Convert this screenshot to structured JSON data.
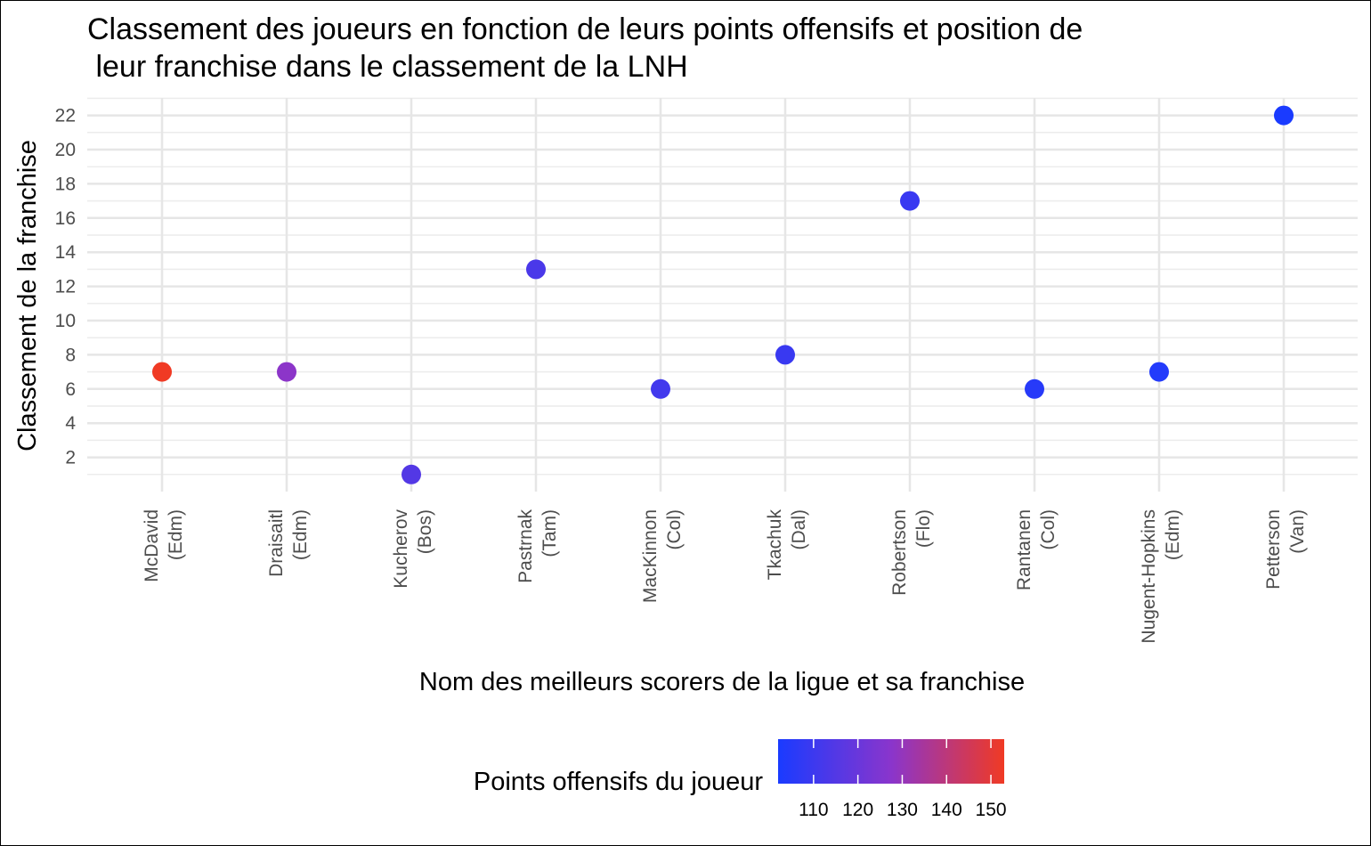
{
  "chart_data": {
    "type": "scatter",
    "title_line1": "Classement des joueurs en fonction de leurs points offensifs et position de",
    "title_line2": " leur franchise dans le classement de la LNH",
    "xlabel": "Nom des meilleurs scorers de la ligue et sa franchise",
    "ylabel": "Classement de la franchise",
    "ylim": [
      0,
      23
    ],
    "yticks": [
      2,
      4,
      6,
      8,
      10,
      12,
      14,
      16,
      18,
      20,
      22
    ],
    "grid": true,
    "points": [
      {
        "name": "McDavid",
        "team": "(Edm)",
        "rank": 7,
        "points_off": 153
      },
      {
        "name": "Draisaitl",
        "team": "(Edm)",
        "rank": 7,
        "points_off": 128
      },
      {
        "name": "Kucherov",
        "team": "(Bos)",
        "rank": 1,
        "points_off": 115
      },
      {
        "name": "Pastrnak",
        "team": "(Tam)",
        "rank": 13,
        "points_off": 113
      },
      {
        "name": "MacKinnon",
        "team": "(Col)",
        "rank": 6,
        "points_off": 111
      },
      {
        "name": "Tkachuk",
        "team": "(Dal)",
        "rank": 8,
        "points_off": 109
      },
      {
        "name": "Robertson",
        "team": "(Flo)",
        "rank": 17,
        "points_off": 109
      },
      {
        "name": "Rantanen",
        "team": "(Col)",
        "rank": 6,
        "points_off": 105
      },
      {
        "name": "Nugent-Hopkins",
        "team": "(Edm)",
        "rank": 7,
        "points_off": 104
      },
      {
        "name": "Petterson",
        "team": "(Van)",
        "rank": 22,
        "points_off": 102
      }
    ],
    "legend": {
      "title": "Points offensifs du joueur",
      "placement": "bottom",
      "min": 102,
      "max": 153,
      "ticks": [
        110,
        120,
        130,
        140,
        150
      ],
      "low_color": "#1a3bff",
      "high_color": "#f03a24"
    }
  }
}
